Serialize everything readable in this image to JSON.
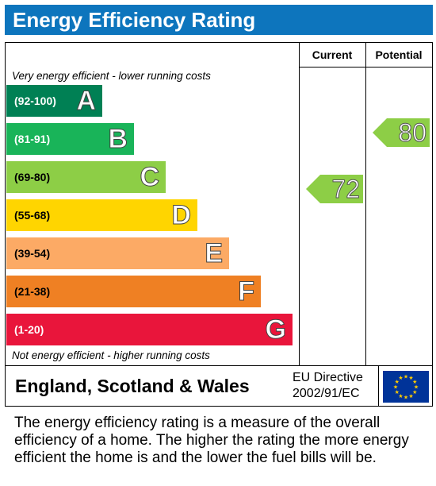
{
  "title": "Energy Efficiency Rating",
  "columns": {
    "current": "Current",
    "potential": "Potential"
  },
  "notes": {
    "top": "Very energy efficient - lower running costs",
    "bottom": "Not energy efficient - higher running costs"
  },
  "footer": {
    "region": "England, Scotland & Wales",
    "directive_line1": "EU Directive",
    "directive_line2": "2002/91/EC"
  },
  "description": "The energy efficiency rating is a measure of the overall efficiency of a home. The higher the rating the more energy efficient the home is and the lower the fuel bills will be.",
  "colors": {
    "title_bar": "#0d75bd",
    "A": "#008054",
    "B": "#19b459",
    "C": "#8dce46",
    "D": "#ffd500",
    "E": "#fcaa65",
    "F": "#ef8023",
    "G": "#e9153b"
  },
  "chart_data": {
    "type": "bar",
    "bands": [
      {
        "letter": "A",
        "range": "(92-100)",
        "min": 92,
        "max": 100
      },
      {
        "letter": "B",
        "range": "(81-91)",
        "min": 81,
        "max": 91
      },
      {
        "letter": "C",
        "range": "(69-80)",
        "min": 69,
        "max": 80
      },
      {
        "letter": "D",
        "range": "(55-68)",
        "min": 55,
        "max": 68
      },
      {
        "letter": "E",
        "range": "(39-54)",
        "min": 39,
        "max": 54
      },
      {
        "letter": "F",
        "range": "(21-38)",
        "min": 21,
        "max": 38
      },
      {
        "letter": "G",
        "range": "(1-20)",
        "min": 1,
        "max": 20
      }
    ],
    "current": {
      "value": 72,
      "band": "C"
    },
    "potential": {
      "value": 80,
      "band": "C"
    }
  }
}
